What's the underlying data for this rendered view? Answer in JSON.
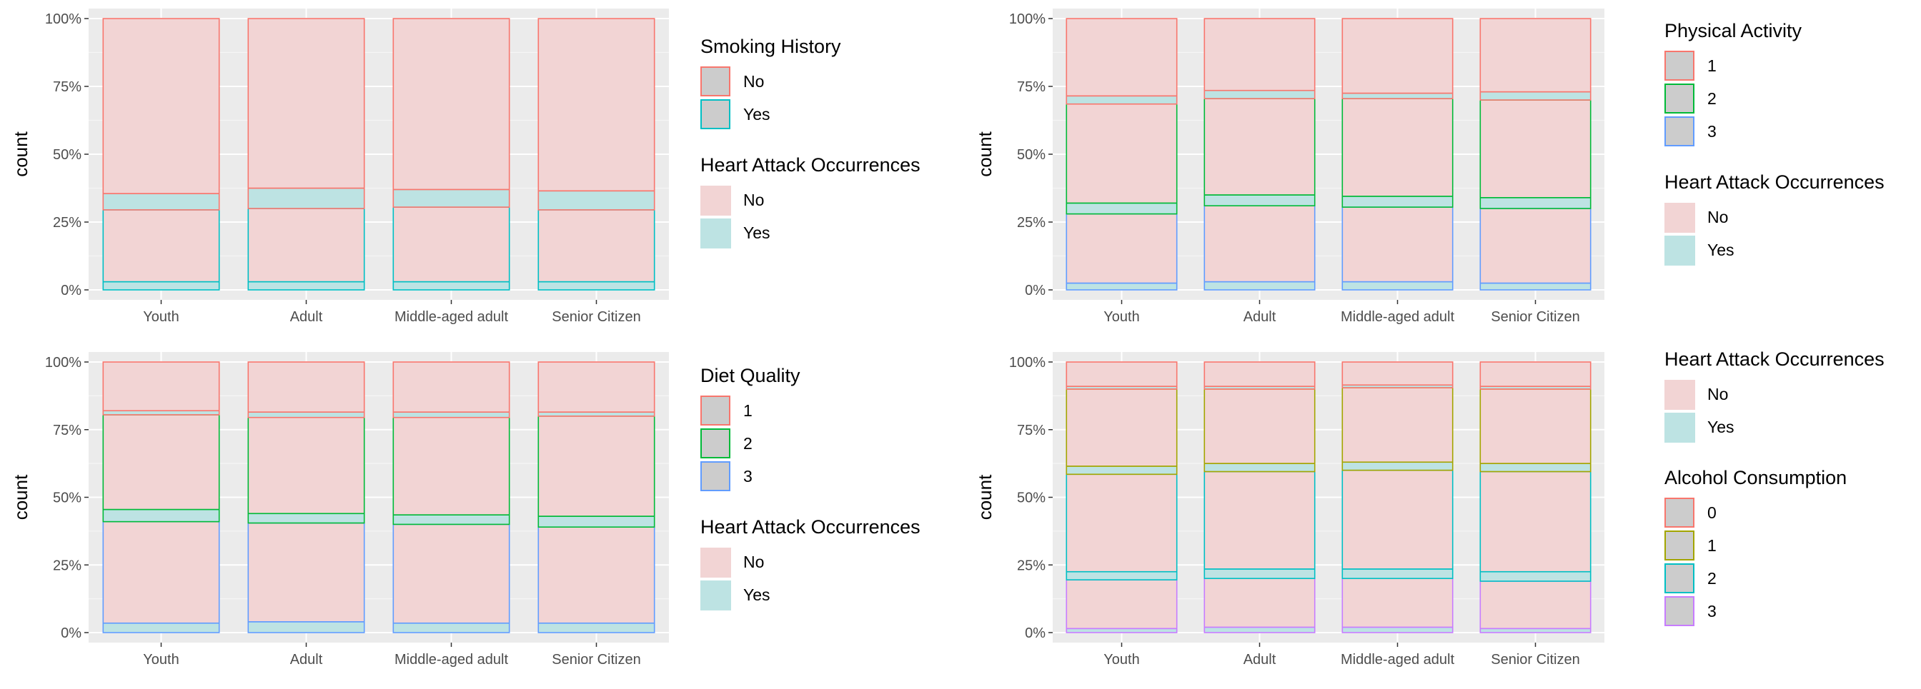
{
  "chart_data": [
    {
      "type": "bar",
      "stacked": true,
      "position": "fill",
      "ylabel": "count",
      "xlabel": "",
      "categories": [
        "Youth",
        "Adult",
        "Middle-aged adult",
        "Senior Citizen"
      ],
      "ytick_labels": [
        "0%",
        "25%",
        "50%",
        "75%",
        "100%"
      ],
      "ylim": [
        0,
        1
      ],
      "grid": true,
      "legend_position": "right",
      "outline_legend": {
        "title": "Smoking History",
        "entries": [
          {
            "label": "No",
            "color": "#F8766D"
          },
          {
            "label": "Yes",
            "color": "#00BFC4"
          }
        ]
      },
      "fill_legend": {
        "title": "Heart Attack Occurrences",
        "entries": [
          {
            "label": "No",
            "color": "#F2D4D4"
          },
          {
            "label": "Yes",
            "color": "#BDE3E3"
          }
        ]
      },
      "legend_order": [
        "outline",
        "fill"
      ],
      "segments": [
        {
          "outline": "Yes",
          "fill": "Yes",
          "values": [
            0.03,
            0.03,
            0.03,
            0.03
          ]
        },
        {
          "outline": "Yes",
          "fill": "No",
          "values": [
            0.265,
            0.27,
            0.275,
            0.265
          ]
        },
        {
          "outline": "No",
          "fill": "Yes",
          "values": [
            0.06,
            0.075,
            0.065,
            0.07
          ]
        },
        {
          "outline": "No",
          "fill": "No",
          "values": [
            0.645,
            0.625,
            0.63,
            0.635
          ]
        }
      ]
    },
    {
      "type": "bar",
      "stacked": true,
      "position": "fill",
      "ylabel": "count",
      "xlabel": "",
      "categories": [
        "Youth",
        "Adult",
        "Middle-aged adult",
        "Senior Citizen"
      ],
      "ytick_labels": [
        "0%",
        "25%",
        "50%",
        "75%",
        "100%"
      ],
      "ylim": [
        0,
        1
      ],
      "grid": true,
      "legend_position": "right",
      "outline_legend": {
        "title": "Physical Activity",
        "entries": [
          {
            "label": "1",
            "color": "#F8766D"
          },
          {
            "label": "2",
            "color": "#00BA38"
          },
          {
            "label": "3",
            "color": "#619CFF"
          }
        ]
      },
      "fill_legend": {
        "title": "Heart Attack Occurrences",
        "entries": [
          {
            "label": "No",
            "color": "#F2D4D4"
          },
          {
            "label": "Yes",
            "color": "#BDE3E3"
          }
        ]
      },
      "legend_order": [
        "outline",
        "fill"
      ],
      "segments": [
        {
          "outline": "3",
          "fill": "Yes",
          "values": [
            0.025,
            0.03,
            0.03,
            0.025
          ]
        },
        {
          "outline": "3",
          "fill": "No",
          "values": [
            0.255,
            0.28,
            0.275,
            0.275
          ]
        },
        {
          "outline": "2",
          "fill": "Yes",
          "values": [
            0.04,
            0.04,
            0.04,
            0.04
          ]
        },
        {
          "outline": "2",
          "fill": "No",
          "values": [
            0.365,
            0.355,
            0.36,
            0.36
          ]
        },
        {
          "outline": "1",
          "fill": "Yes",
          "values": [
            0.03,
            0.03,
            0.02,
            0.03
          ]
        },
        {
          "outline": "1",
          "fill": "No",
          "values": [
            0.285,
            0.265,
            0.275,
            0.27
          ]
        }
      ]
    },
    {
      "type": "bar",
      "stacked": true,
      "position": "fill",
      "ylabel": "count",
      "xlabel": "",
      "categories": [
        "Youth",
        "Adult",
        "Middle-aged adult",
        "Senior Citizen"
      ],
      "ytick_labels": [
        "0%",
        "25%",
        "50%",
        "75%",
        "100%"
      ],
      "ylim": [
        0,
        1
      ],
      "grid": true,
      "legend_position": "right",
      "outline_legend": {
        "title": "Diet Quality",
        "entries": [
          {
            "label": "1",
            "color": "#F8766D"
          },
          {
            "label": "2",
            "color": "#00BA38"
          },
          {
            "label": "3",
            "color": "#619CFF"
          }
        ]
      },
      "fill_legend": {
        "title": "Heart Attack Occurrences",
        "entries": [
          {
            "label": "No",
            "color": "#F2D4D4"
          },
          {
            "label": "Yes",
            "color": "#BDE3E3"
          }
        ]
      },
      "legend_order": [
        "outline",
        "fill"
      ],
      "segments": [
        {
          "outline": "3",
          "fill": "Yes",
          "values": [
            0.035,
            0.04,
            0.035,
            0.035
          ]
        },
        {
          "outline": "3",
          "fill": "No",
          "values": [
            0.375,
            0.365,
            0.365,
            0.355
          ]
        },
        {
          "outline": "2",
          "fill": "Yes",
          "values": [
            0.045,
            0.035,
            0.035,
            0.04
          ]
        },
        {
          "outline": "2",
          "fill": "No",
          "values": [
            0.35,
            0.355,
            0.36,
            0.37
          ]
        },
        {
          "outline": "1",
          "fill": "Yes",
          "values": [
            0.015,
            0.02,
            0.02,
            0.015
          ]
        },
        {
          "outline": "1",
          "fill": "No",
          "values": [
            0.18,
            0.185,
            0.185,
            0.185
          ]
        }
      ]
    },
    {
      "type": "bar",
      "stacked": true,
      "position": "fill",
      "ylabel": "count",
      "xlabel": "",
      "categories": [
        "Youth",
        "Adult",
        "Middle-aged adult",
        "Senior Citizen"
      ],
      "ytick_labels": [
        "0%",
        "25%",
        "50%",
        "75%",
        "100%"
      ],
      "ylim": [
        0,
        1
      ],
      "grid": true,
      "legend_position": "right",
      "outline_legend": {
        "title": "Alcohol Consumption",
        "entries": [
          {
            "label": "0",
            "color": "#F8766D"
          },
          {
            "label": "1",
            "color": "#A3A500"
          },
          {
            "label": "2",
            "color": "#00BFC4"
          },
          {
            "label": "3",
            "color": "#C77CFF"
          }
        ]
      },
      "fill_legend": {
        "title": "Heart Attack Occurrences",
        "entries": [
          {
            "label": "No",
            "color": "#F2D4D4"
          },
          {
            "label": "Yes",
            "color": "#BDE3E3"
          }
        ]
      },
      "legend_order": [
        "fill",
        "outline"
      ],
      "segments": [
        {
          "outline": "3",
          "fill": "Yes",
          "values": [
            0.015,
            0.02,
            0.02,
            0.015
          ]
        },
        {
          "outline": "3",
          "fill": "No",
          "values": [
            0.18,
            0.18,
            0.18,
            0.175
          ]
        },
        {
          "outline": "2",
          "fill": "Yes",
          "values": [
            0.03,
            0.035,
            0.035,
            0.035
          ]
        },
        {
          "outline": "2",
          "fill": "No",
          "values": [
            0.36,
            0.36,
            0.365,
            0.37
          ]
        },
        {
          "outline": "1",
          "fill": "Yes",
          "values": [
            0.03,
            0.03,
            0.03,
            0.03
          ]
        },
        {
          "outline": "1",
          "fill": "No",
          "values": [
            0.285,
            0.275,
            0.275,
            0.275
          ]
        },
        {
          "outline": "0",
          "fill": "Yes",
          "values": [
            0.01,
            0.01,
            0.01,
            0.01
          ]
        },
        {
          "outline": "0",
          "fill": "No",
          "values": [
            0.09,
            0.09,
            0.085,
            0.09
          ]
        }
      ]
    }
  ]
}
